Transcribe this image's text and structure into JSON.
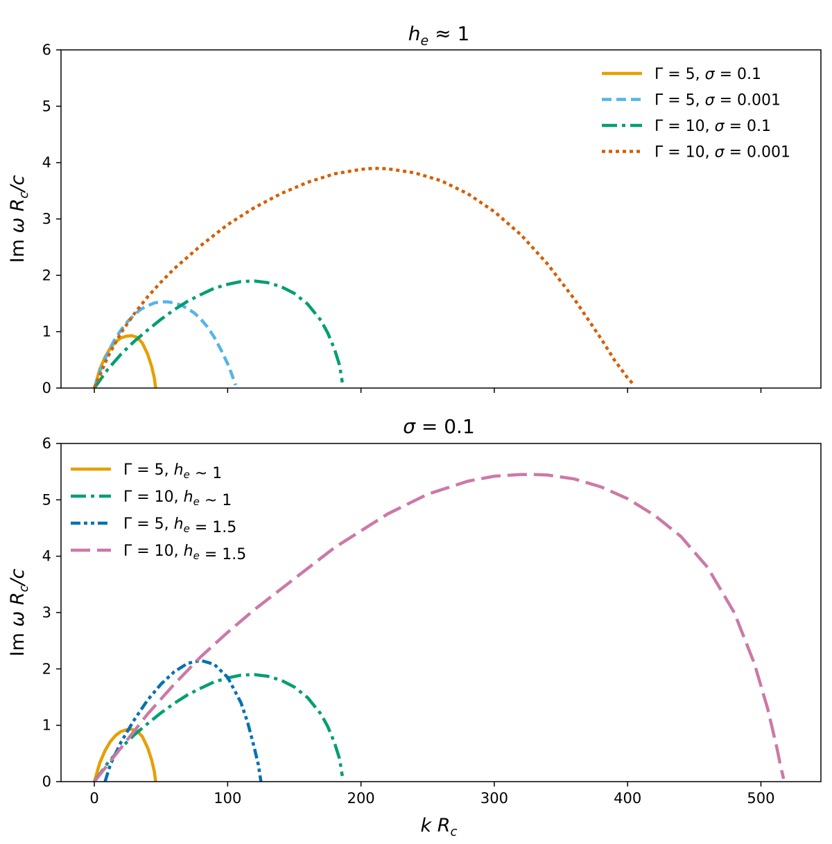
{
  "chart_data": [
    {
      "type": "line",
      "title": "h_e ≈ 1",
      "xlabel": "",
      "ylabel": "Im ω R_c/c",
      "xlim": [
        -25,
        545
      ],
      "ylim": [
        0,
        6
      ],
      "x_ticks": [
        0,
        100,
        200,
        300,
        400,
        500
      ],
      "x_tick_labels": [
        "",
        "",
        "",
        "",
        "",
        ""
      ],
      "y_ticks": [
        0,
        1,
        2,
        3,
        4,
        5,
        6
      ],
      "y_tick_labels": [
        "0",
        "1",
        "2",
        "3",
        "4",
        "5",
        "6"
      ],
      "grid": false,
      "legend_position": "top-right",
      "series": [
        {
          "name": "Γ = 5, σ = 0.1",
          "color": "#E69F00",
          "style": "solid",
          "x": [
            0,
            4,
            8,
            12,
            16,
            20,
            24,
            28,
            32,
            36,
            40,
            43,
            45,
            46
          ],
          "y": [
            0,
            0.33,
            0.55,
            0.71,
            0.82,
            0.89,
            0.92,
            0.93,
            0.9,
            0.8,
            0.6,
            0.38,
            0.18,
            0
          ]
        },
        {
          "name": "Γ = 5, σ = 0.001",
          "color": "#56B4E9",
          "style": "dashed",
          "x": [
            0,
            5,
            10,
            15,
            20,
            25,
            30,
            35,
            40,
            45,
            50,
            55,
            60,
            65,
            70,
            75,
            80,
            85,
            90,
            95,
            100,
            103,
            106
          ],
          "y": [
            0,
            0.35,
            0.62,
            0.85,
            1.03,
            1.18,
            1.3,
            1.4,
            1.46,
            1.51,
            1.53,
            1.53,
            1.51,
            1.47,
            1.41,
            1.33,
            1.22,
            1.08,
            0.9,
            0.68,
            0.43,
            0.25,
            0.05
          ]
        },
        {
          "name": "Γ = 10, σ = 0.1",
          "color": "#009E73",
          "style": "dashdot",
          "x": [
            0,
            10,
            20,
            30,
            40,
            50,
            60,
            70,
            80,
            90,
            100,
            110,
            120,
            130,
            140,
            150,
            160,
            170,
            175,
            180,
            184,
            186
          ],
          "y": [
            0,
            0.33,
            0.6,
            0.83,
            1.03,
            1.22,
            1.39,
            1.54,
            1.66,
            1.77,
            1.84,
            1.89,
            1.9,
            1.87,
            1.8,
            1.68,
            1.49,
            1.2,
            0.98,
            0.7,
            0.4,
            0.1
          ]
        },
        {
          "name": "Γ = 10, σ = 0.001",
          "color": "#D55E00",
          "style": "dotted",
          "x": [
            0,
            10,
            20,
            30,
            40,
            50,
            60,
            80,
            100,
            120,
            140,
            160,
            180,
            200,
            210,
            220,
            240,
            260,
            280,
            300,
            320,
            340,
            360,
            380,
            390,
            400,
            405
          ],
          "y": [
            0,
            0.55,
            0.98,
            1.32,
            1.62,
            1.88,
            2.12,
            2.53,
            2.9,
            3.2,
            3.45,
            3.65,
            3.8,
            3.88,
            3.9,
            3.89,
            3.82,
            3.68,
            3.45,
            3.13,
            2.72,
            2.2,
            1.58,
            0.88,
            0.5,
            0.18,
            0.05
          ]
        }
      ]
    },
    {
      "type": "line",
      "title": "σ = 0.1",
      "xlabel": "k R_c",
      "ylabel": "Im ω R_c/c",
      "xlim": [
        -25,
        545
      ],
      "ylim": [
        0,
        6
      ],
      "x_ticks": [
        0,
        100,
        200,
        300,
        400,
        500
      ],
      "x_tick_labels": [
        "0",
        "100",
        "200",
        "300",
        "400",
        "500"
      ],
      "y_ticks": [
        0,
        1,
        2,
        3,
        4,
        5,
        6
      ],
      "y_tick_labels": [
        "0",
        "1",
        "2",
        "3",
        "4",
        "5",
        "6"
      ],
      "grid": false,
      "legend_position": "top-left",
      "series": [
        {
          "name": "Γ = 5, h_e ~ 1",
          "color": "#E69F00",
          "style": "solid",
          "x": [
            0,
            4,
            8,
            12,
            16,
            20,
            24,
            28,
            32,
            36,
            40,
            43,
            45,
            46
          ],
          "y": [
            0,
            0.33,
            0.55,
            0.71,
            0.82,
            0.89,
            0.92,
            0.93,
            0.9,
            0.8,
            0.6,
            0.38,
            0.18,
            0
          ]
        },
        {
          "name": "Γ = 10, h_e ~ 1",
          "color": "#009E73",
          "style": "dashdot",
          "x": [
            0,
            10,
            20,
            30,
            40,
            50,
            60,
            70,
            80,
            90,
            100,
            110,
            120,
            130,
            140,
            150,
            160,
            170,
            175,
            180,
            184,
            186
          ],
          "y": [
            0,
            0.33,
            0.6,
            0.83,
            1.03,
            1.22,
            1.39,
            1.54,
            1.66,
            1.77,
            1.84,
            1.89,
            1.9,
            1.87,
            1.8,
            1.68,
            1.49,
            1.2,
            0.98,
            0.7,
            0.4,
            0.1
          ]
        },
        {
          "name": "Γ = 5, h_e = 1.5",
          "color": "#0072B2",
          "style": "dashdotdot",
          "x": [
            8,
            12,
            16,
            20,
            25,
            30,
            40,
            50,
            60,
            70,
            80,
            90,
            100,
            110,
            115,
            120,
            123,
            125
          ],
          "y": [
            0,
            0.3,
            0.5,
            0.7,
            0.9,
            1.1,
            1.45,
            1.73,
            1.95,
            2.1,
            2.15,
            2.08,
            1.85,
            1.4,
            1.05,
            0.6,
            0.3,
            0
          ]
        },
        {
          "name": "Γ = 10, h_e = 1.5",
          "color": "#CC79A7",
          "style": "longdash",
          "x": [
            0,
            10,
            20,
            40,
            60,
            80,
            100,
            120,
            150,
            180,
            200,
            220,
            250,
            280,
            300,
            320,
            330,
            340,
            360,
            380,
            400,
            420,
            440,
            460,
            480,
            495,
            505,
            512,
            515,
            517
          ],
          "y": [
            0,
            0.3,
            0.6,
            1.2,
            1.73,
            2.22,
            2.65,
            3.05,
            3.6,
            4.15,
            4.45,
            4.75,
            5.1,
            5.33,
            5.42,
            5.45,
            5.45,
            5.44,
            5.37,
            5.23,
            5.02,
            4.73,
            4.35,
            3.8,
            3.0,
            2.1,
            1.3,
            0.6,
            0.25,
            0.05
          ]
        }
      ]
    }
  ]
}
